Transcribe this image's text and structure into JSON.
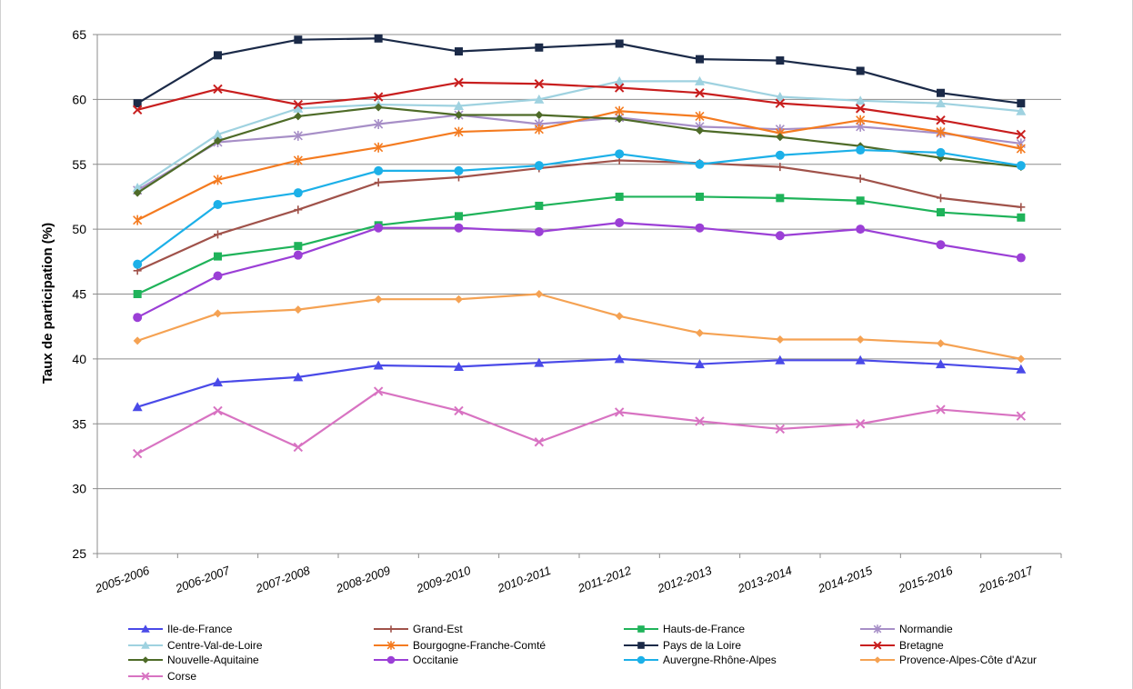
{
  "chart_data": {
    "type": "line",
    "title": "",
    "xlabel": "",
    "ylabel": "Taux de participation (%)",
    "ylim": [
      25,
      65
    ],
    "yticks": [
      25,
      30,
      35,
      40,
      45,
      50,
      55,
      60,
      65
    ],
    "grid": true,
    "legend_position": "bottom",
    "categories": [
      "2005-2006",
      "2006-2007",
      "2007-2008",
      "2008-2009",
      "2009-2010",
      "2010-2011",
      "2011-2012",
      "2012-2013",
      "2013-2014",
      "2014-2015",
      "2015-2016",
      "2016-2017"
    ],
    "series": [
      {
        "name": "Ile-de-France",
        "color": "#4a4ae8",
        "marker": "triangle",
        "values": [
          36.3,
          38.2,
          38.6,
          39.5,
          39.4,
          39.7,
          40.0,
          39.6,
          39.9,
          39.9,
          39.6,
          39.2
        ]
      },
      {
        "name": "Grand-Est",
        "color": "#a0524a",
        "marker": "plus",
        "values": [
          46.8,
          49.6,
          51.5,
          53.6,
          54.0,
          54.7,
          55.3,
          55.1,
          54.8,
          53.9,
          52.4,
          51.7
        ]
      },
      {
        "name": "Hauts-de-France",
        "color": "#1fb35a",
        "marker": "square",
        "values": [
          45.0,
          47.9,
          48.7,
          50.3,
          51.0,
          51.8,
          52.5,
          52.5,
          52.4,
          52.2,
          51.3,
          50.9
        ]
      },
      {
        "name": "Normandie",
        "color": "#a78fc7",
        "marker": "star",
        "values": [
          53.0,
          56.7,
          57.2,
          58.1,
          58.8,
          58.1,
          58.6,
          57.9,
          57.7,
          57.9,
          57.4,
          56.6
        ]
      },
      {
        "name": "Centre-Val-de-Loire",
        "color": "#9fd2e0",
        "marker": "triangle",
        "values": [
          53.2,
          57.3,
          59.3,
          59.6,
          59.5,
          60.0,
          61.4,
          61.4,
          60.2,
          59.9,
          59.7,
          59.1
        ]
      },
      {
        "name": "Bourgogne-Franche-Comté",
        "color": "#f47b20",
        "marker": "star",
        "values": [
          50.7,
          53.8,
          55.3,
          56.3,
          57.5,
          57.7,
          59.1,
          58.7,
          57.4,
          58.4,
          57.5,
          56.2
        ]
      },
      {
        "name": "Pays de la Loire",
        "color": "#1b2a48",
        "marker": "square",
        "values": [
          59.7,
          63.4,
          64.6,
          64.7,
          63.7,
          64.0,
          64.3,
          63.1,
          63.0,
          62.2,
          60.5,
          59.7
        ]
      },
      {
        "name": "Bretagne",
        "color": "#c81e1e",
        "marker": "cross",
        "values": [
          59.2,
          60.8,
          59.6,
          60.2,
          61.3,
          61.2,
          60.9,
          60.5,
          59.7,
          59.3,
          58.4,
          57.3
        ]
      },
      {
        "name": "Nouvelle-Aquitaine",
        "color": "#4e6b28",
        "marker": "diamond",
        "values": [
          52.8,
          56.8,
          58.7,
          59.4,
          58.8,
          58.8,
          58.5,
          57.6,
          57.1,
          56.4,
          55.5,
          54.8
        ]
      },
      {
        "name": "Occitanie",
        "color": "#9b3fd6",
        "marker": "circle",
        "values": [
          43.2,
          46.4,
          48.0,
          50.1,
          50.1,
          49.8,
          50.5,
          50.1,
          49.5,
          50.0,
          48.8,
          47.8
        ]
      },
      {
        "name": "Auvergne-Rhône-Alpes",
        "color": "#1cb0e8",
        "marker": "circle",
        "values": [
          47.3,
          51.9,
          52.8,
          54.5,
          54.5,
          54.9,
          55.8,
          55.0,
          55.7,
          56.1,
          55.9,
          54.9
        ]
      },
      {
        "name": "Provence-Alpes-Côte d'Azur",
        "color": "#f5a253",
        "marker": "diamond",
        "values": [
          41.4,
          43.5,
          43.8,
          44.6,
          44.6,
          45.0,
          43.3,
          42.0,
          41.5,
          41.5,
          41.2,
          40.0
        ]
      },
      {
        "name": "Corse",
        "color": "#d873c2",
        "marker": "cross",
        "values": [
          32.7,
          36.0,
          33.2,
          37.5,
          36.0,
          33.6,
          35.9,
          35.2,
          34.6,
          35.0,
          36.1,
          35.6
        ]
      }
    ]
  }
}
